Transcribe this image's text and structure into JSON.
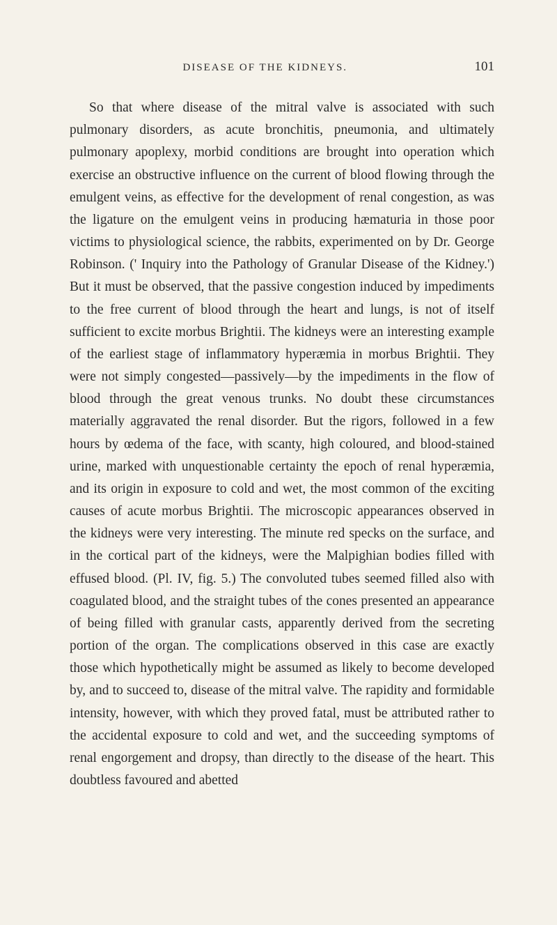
{
  "page": {
    "runningTitle": "DISEASE OF THE KIDNEYS.",
    "pageNumber": "101",
    "bodyText": "So that where disease of the mitral valve is associated with such pulmonary disorders, as acute bronchitis, pneumonia, and ultimately pulmonary apoplexy, morbid conditions are brought into operation which exercise an obstructive influence on the current of blood flowing through the emulgent veins, as effective for the development of renal congestion, as was the ligature on the emulgent veins in producing hæmaturia in those poor victims to physiological science, the rabbits, experimented on by Dr. George Robinson. (' Inquiry into the Pathology of Granular Disease of the Kidney.') But it must be observed, that the passive congestion induced by impediments to the free current of blood through the heart and lungs, is not of itself sufficient to excite morbus Brightii. The kidneys were an interesting example of the earliest stage of inflammatory hyperæmia in morbus Brightii. They were not simply congested—passively—by the impediments in the flow of blood through the great venous trunks. No doubt these circumstances materially aggravated the renal disorder. But the rigors, followed in a few hours by œdema of the face, with scanty, high coloured, and blood-stained urine, marked with unquestionable certainty the epoch of renal hyperæmia, and its origin in exposure to cold and wet, the most common of the exciting causes of acute morbus Brightii. The microscopic appearances observed in the kidneys were very interesting. The minute red specks on the surface, and in the cortical part of the kidneys, were the Malpighian bodies filled with effused blood. (Pl. IV, fig. 5.) The convoluted tubes seemed filled also with coagulated blood, and the straight tubes of the cones presented an appearance of being filled with granular casts, apparently derived from the secreting portion of the organ. The complications observed in this case are exactly those which hypothetically might be assumed as likely to become developed by, and to succeed to, disease of the mitral valve. The rapidity and formidable intensity, however, with which they proved fatal, must be attributed rather to the accidental exposure to cold and wet, and the succeeding symptoms of renal engorgement and dropsy, than directly to the disease of the heart. This doubtless favoured and abetted"
  },
  "styling": {
    "backgroundColor": "#f5f2ea",
    "textColor": "#2a2a2a",
    "bodyFontSize": 19.5,
    "lineHeight": 1.65,
    "headerFontSize": 15,
    "pageNumberFontSize": 19,
    "textIndent": 28,
    "pageWidth": 800,
    "pageHeight": 1327
  }
}
